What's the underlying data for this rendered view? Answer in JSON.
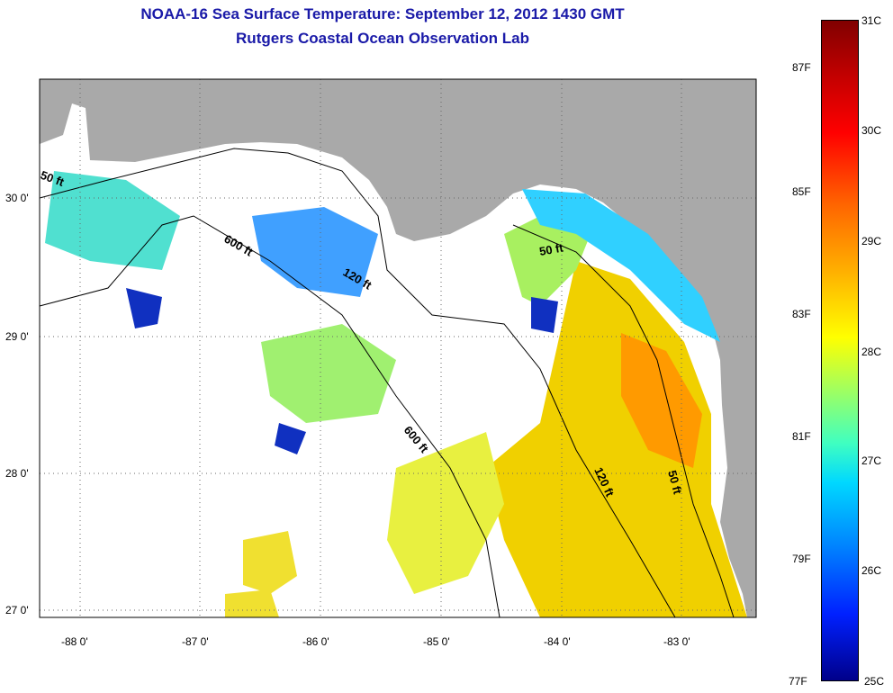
{
  "header": {
    "title": "NOAA-16 Sea Surface Temperature:  September 12, 2012 1430 GMT",
    "subtitle": "Rutgers Coastal Ocean Observation Lab"
  },
  "axes": {
    "lon_ticks": [
      "-88 0'",
      "-87 0'",
      "-86 0'",
      "-85 0'",
      "-84 0'",
      "-83 0'"
    ],
    "lat_ticks": [
      "30 0'",
      "29 0'",
      "28 0'",
      "27 0'"
    ]
  },
  "contours": [
    "50 ft",
    "600 ft",
    "120 ft",
    "50 ft",
    "600 ft",
    "120 ft",
    "50 ft"
  ],
  "colorbar": {
    "celsius": [
      "31C",
      "30C",
      "29C",
      "28C",
      "27C",
      "26C",
      "25C"
    ],
    "fahrenheit": [
      "87F",
      "85F",
      "83F",
      "81F",
      "79F",
      "77F"
    ]
  },
  "colors": {
    "land": "#a9a9a9",
    "cloud": "#ffffff",
    "title": "#1a1aa8"
  }
}
